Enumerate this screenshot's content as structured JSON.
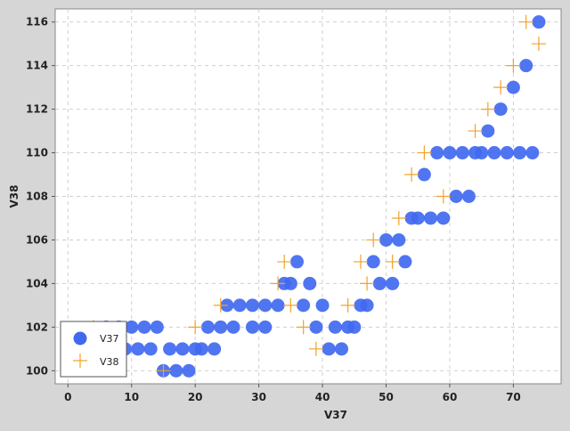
{
  "chart_data": {
    "type": "scatter",
    "xlabel": "V37",
    "ylabel": "V38",
    "xlim": [
      -2,
      77.5
    ],
    "ylim": [
      99.4,
      116.6
    ],
    "x_ticks": [
      0,
      10,
      20,
      30,
      40,
      50,
      60,
      70
    ],
    "y_ticks": [
      100,
      102,
      104,
      106,
      108,
      110,
      112,
      114,
      116
    ],
    "grid": true,
    "legend_position": "bottom-left",
    "colors": {
      "series1": "#4169f0",
      "series2": "#f2a22a",
      "background": "#d6d6d6",
      "plot": "#ffffff",
      "grid": "#cfcfcf"
    },
    "series": [
      {
        "name": "V37",
        "marker": "circle",
        "points": [
          [
            6,
            102
          ],
          [
            8,
            102
          ],
          [
            10,
            102
          ],
          [
            12,
            102
          ],
          [
            14,
            102
          ],
          [
            9,
            101
          ],
          [
            11,
            101
          ],
          [
            13,
            101
          ],
          [
            15,
            100
          ],
          [
            17,
            100
          ],
          [
            19,
            100
          ],
          [
            16,
            101
          ],
          [
            18,
            101
          ],
          [
            20,
            101
          ],
          [
            21,
            101
          ],
          [
            23,
            101
          ],
          [
            22,
            102
          ],
          [
            24,
            102
          ],
          [
            26,
            102
          ],
          [
            29,
            102
          ],
          [
            31,
            102
          ],
          [
            25,
            103
          ],
          [
            27,
            103
          ],
          [
            29,
            103
          ],
          [
            31,
            103
          ],
          [
            33,
            103
          ],
          [
            34,
            104
          ],
          [
            35,
            104
          ],
          [
            36,
            105
          ],
          [
            37,
            103
          ],
          [
            38,
            104
          ],
          [
            39,
            102
          ],
          [
            40,
            103
          ],
          [
            41,
            101
          ],
          [
            42,
            102
          ],
          [
            43,
            101
          ],
          [
            44,
            102
          ],
          [
            45,
            102
          ],
          [
            46,
            103
          ],
          [
            47,
            103
          ],
          [
            48,
            105
          ],
          [
            49,
            104
          ],
          [
            51,
            104
          ],
          [
            50,
            106
          ],
          [
            52,
            106
          ],
          [
            53,
            105
          ],
          [
            54,
            107
          ],
          [
            55,
            107
          ],
          [
            57,
            107
          ],
          [
            59,
            107
          ],
          [
            56,
            109
          ],
          [
            58,
            110
          ],
          [
            60,
            110
          ],
          [
            62,
            110
          ],
          [
            64,
            110
          ],
          [
            65,
            110
          ],
          [
            67,
            110
          ],
          [
            69,
            110
          ],
          [
            71,
            110
          ],
          [
            73,
            110
          ],
          [
            61,
            108
          ],
          [
            63,
            108
          ],
          [
            66,
            111
          ],
          [
            68,
            112
          ],
          [
            70,
            113
          ],
          [
            72,
            114
          ],
          [
            74,
            116
          ]
        ]
      },
      {
        "name": "V38",
        "marker": "plus",
        "points": [
          [
            4,
            102
          ],
          [
            15,
            100
          ],
          [
            20,
            102
          ],
          [
            24,
            103
          ],
          [
            33,
            104
          ],
          [
            34,
            105
          ],
          [
            35,
            103
          ],
          [
            37,
            102
          ],
          [
            39,
            101
          ],
          [
            44,
            103
          ],
          [
            46,
            105
          ],
          [
            47,
            104
          ],
          [
            48,
            106
          ],
          [
            51,
            105
          ],
          [
            52,
            107
          ],
          [
            54,
            109
          ],
          [
            56,
            110
          ],
          [
            59,
            108
          ],
          [
            64,
            111
          ],
          [
            66,
            112
          ],
          [
            68,
            113
          ],
          [
            70,
            114
          ],
          [
            72,
            116
          ],
          [
            74,
            115
          ]
        ]
      }
    ]
  }
}
